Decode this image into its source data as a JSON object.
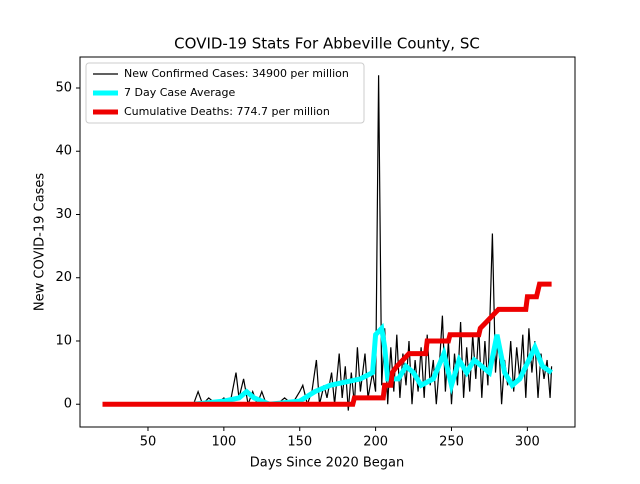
{
  "chart_data": {
    "type": "line",
    "title": "COVID-19 Stats For Abbeville County, SC",
    "x_label": "Days Since 2020 Began",
    "y_label": "New COVID-19 Cases",
    "xlim": [
      5.2,
      331.4
    ],
    "ylim": [
      -3.6,
      54.9
    ],
    "xticks": [
      50,
      100,
      150,
      200,
      250,
      300
    ],
    "yticks": [
      0,
      10,
      20,
      30,
      40,
      50
    ],
    "legend": "upper left",
    "series": [
      {
        "name": "New Confirmed Cases: 34900 per million",
        "color": "#000000",
        "width": 1.2,
        "x": [
          20,
          40,
          60,
          75,
          80,
          83,
          86,
          90,
          95,
          100,
          104,
          108,
          110,
          113,
          116,
          119,
          122,
          125,
          128,
          135,
          140,
          145,
          150,
          152,
          155,
          158,
          161,
          163,
          166,
          168,
          171,
          173,
          176,
          178,
          180,
          182,
          184,
          186,
          188,
          190,
          193,
          195,
          198,
          200,
          202,
          204,
          206,
          208,
          210,
          212,
          214,
          216,
          218,
          220,
          222,
          224,
          226,
          228,
          230,
          232,
          234,
          236,
          238,
          240,
          242,
          244,
          246,
          248,
          250,
          252,
          254,
          256,
          258,
          260,
          262,
          264,
          266,
          268,
          270,
          272,
          274,
          277,
          279,
          281,
          283,
          285,
          287,
          289,
          291,
          293,
          295,
          297,
          299,
          301,
          303,
          305,
          307,
          309,
          311,
          313,
          315,
          316
        ],
        "values": [
          0,
          0,
          0,
          0,
          0,
          2,
          0,
          1,
          0,
          1,
          0,
          5,
          1,
          4,
          0,
          2,
          0,
          2,
          0,
          0,
          1,
          0,
          2,
          3,
          0,
          2,
          7,
          0,
          3,
          1,
          5,
          0,
          8,
          1,
          6,
          -1,
          5,
          0,
          9,
          2,
          8,
          1,
          5,
          2,
          52,
          3,
          12,
          0,
          9,
          2,
          11,
          1,
          8,
          3,
          10,
          0,
          7,
          2,
          9,
          1,
          11,
          3,
          7,
          0,
          6,
          14,
          2,
          10,
          0,
          8,
          3,
          13,
          1,
          9,
          2,
          11,
          4,
          12,
          1,
          10,
          3,
          27,
          5,
          11,
          0,
          7,
          3,
          10,
          2,
          9,
          4,
          11,
          1,
          12,
          5,
          10,
          1,
          8,
          4,
          7,
          1,
          6
        ]
      },
      {
        "name": "7 Day Case Average",
        "color": "#00ffff",
        "width": 5,
        "x": [
          80,
          100,
          110,
          115,
          120,
          130,
          150,
          160,
          170,
          180,
          190,
          198,
          200,
          204,
          206,
          208,
          215,
          220,
          225,
          230,
          238,
          245,
          250,
          255,
          260,
          265,
          270,
          275,
          280,
          285,
          290,
          295,
          305,
          310,
          316
        ],
        "values": [
          0,
          0.5,
          1,
          2,
          1,
          0,
          0.5,
          2,
          3,
          3.5,
          4,
          5,
          11,
          12,
          9,
          4,
          4,
          6,
          5,
          3,
          4,
          8,
          3,
          7,
          5,
          7,
          6,
          5,
          11,
          5,
          3,
          4,
          9,
          6,
          5
        ]
      },
      {
        "name": "Cumulative Deaths: 774.7 per million",
        "color": "#ee0000",
        "width": 5,
        "x": [
          20,
          185,
          186,
          205,
          206,
          210,
          211,
          214,
          218,
          222,
          233,
          234,
          248,
          249,
          268,
          269,
          273,
          277,
          281,
          299,
          300,
          306,
          308,
          316
        ],
        "values": [
          0,
          0,
          1,
          1,
          3,
          3,
          5,
          6,
          7,
          8,
          8,
          10,
          10,
          11,
          11,
          12,
          13,
          14,
          15,
          15,
          17,
          17,
          19,
          19
        ]
      }
    ]
  }
}
